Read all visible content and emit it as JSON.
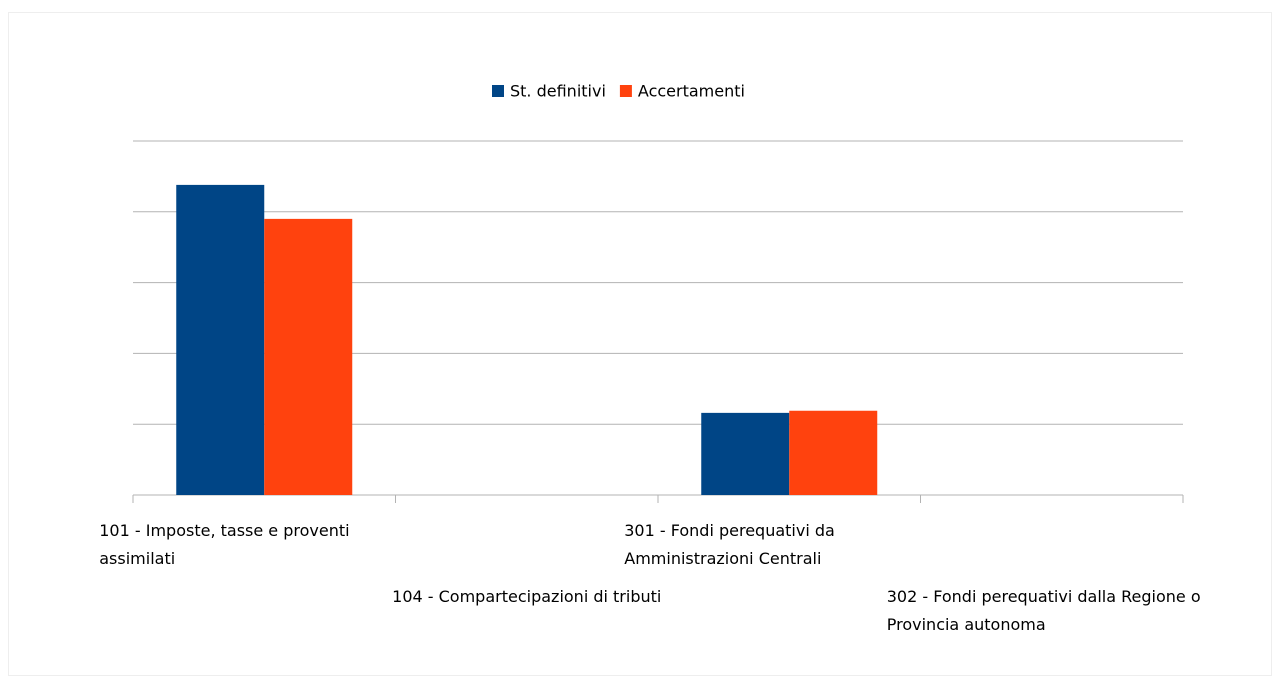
{
  "chart_data": {
    "type": "bar",
    "categories": [
      "101 - Imposte, tasse e proventi assimilati",
      "104 - Compartecipazioni di tributi",
      "301 - Fondi perequativi da Amministrazioni Centrali",
      "302 - Fondi perequativi dalla Regione o Provincia autonoma"
    ],
    "series": [
      {
        "name": "St. definitivi",
        "color": "#004586",
        "values": [
          4.38,
          0,
          1.16,
          0
        ]
      },
      {
        "name": "Accertamenti",
        "color": "#ff420e",
        "values": [
          3.9,
          0,
          1.19,
          0
        ]
      }
    ],
    "ylim": [
      0,
      5
    ],
    "yticks": [
      0,
      1,
      2,
      3,
      4,
      5
    ],
    "grid": true,
    "legend": "top"
  }
}
